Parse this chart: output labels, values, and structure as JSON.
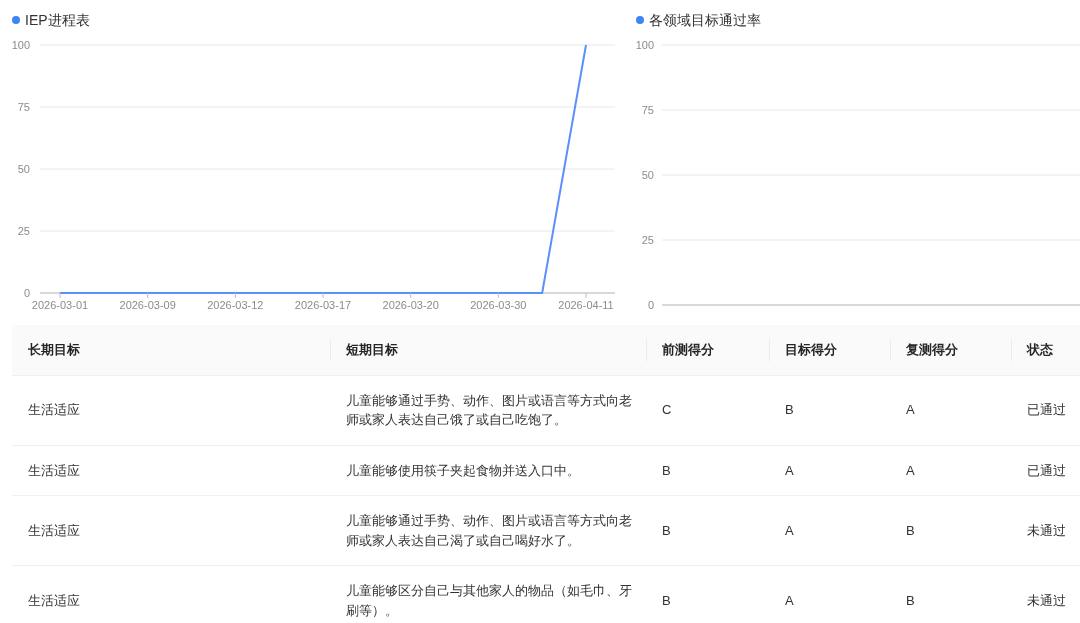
{
  "chart_data": [
    {
      "type": "line",
      "title": "IEP进程表",
      "categories": [
        "2026-03-01",
        null,
        "2026-03-09",
        null,
        "2026-03-12",
        null,
        "2026-03-17",
        null,
        "2026-03-20",
        null,
        "2026-03-30",
        null,
        "2026-04-11"
      ],
      "series": [
        {
          "color": "#5b8ff9",
          "values": [
            0,
            0,
            0,
            0,
            0,
            0,
            0,
            0,
            0,
            0,
            0,
            0,
            100
          ]
        }
      ],
      "ylim": [
        0,
        100
      ],
      "yticks": [
        0,
        25,
        50,
        75,
        100
      ],
      "grid": "y",
      "marker": "none"
    },
    {
      "type": "bar",
      "title": "各领域目标通过率",
      "categories": [
        null
      ],
      "values": [
        null
      ],
      "ylim": [
        0,
        100
      ],
      "yticks": [
        0,
        25,
        50,
        75,
        100
      ],
      "grid": "y"
    },
    {
      "type": "other",
      "categories": [
        "长期目标",
        "短期目标",
        "前测得分",
        "目标得分",
        "复测得分",
        "状态"
      ],
      "annotations": [
        "生活适应",
        "儿童能够通过手势、动作、图片或语言等方式向老师或家人表达自己饿了或自己吃饱了。",
        "C",
        "B",
        "A",
        "已通过",
        "生活适应",
        "儿童能够使用筷子夹起食物并送入口中。",
        "B",
        "A",
        "A",
        "已通过",
        "生活适应",
        "儿童能够通过手势、动作、图片或语言等方式向老师或家人表达自己渴了或自己喝好水了。",
        "B",
        "A",
        "B",
        "未通过",
        "生活适应",
        "儿童能够区分自己与其他家人的物品（如毛巾、牙刷等）。",
        "B",
        "A",
        "B",
        "未通过"
      ]
    }
  ]
}
